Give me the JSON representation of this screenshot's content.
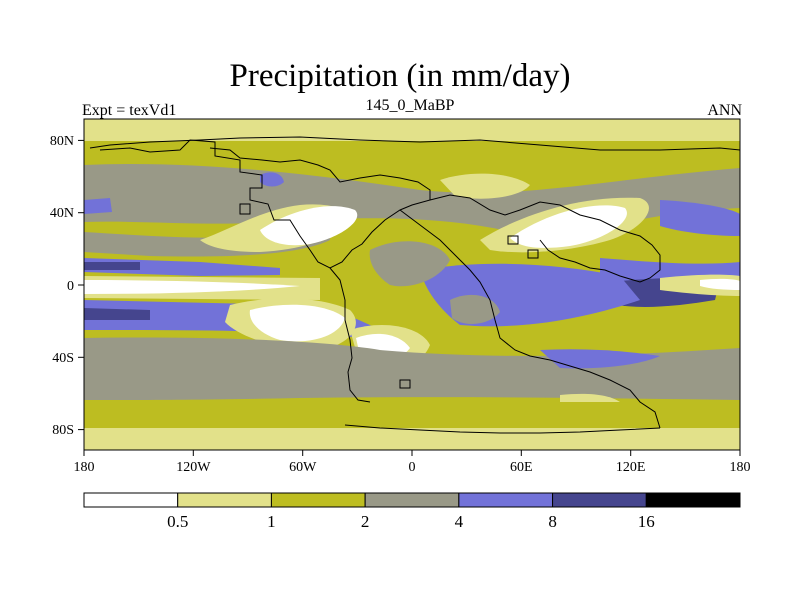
{
  "header": {
    "title": "Precipitation (in mm/day)",
    "experiment": "Expt = texVd1",
    "period": "145_0_MaBP",
    "season": "ANN"
  },
  "map": {
    "x_tick_labels": [
      "180",
      "120W",
      "60W",
      "0",
      "60E",
      "120E",
      "180"
    ],
    "y_tick_labels": [
      "80N",
      "40N",
      "0",
      "40S",
      "80S"
    ],
    "longitude_range": [
      -180,
      180
    ],
    "latitude_range": [
      -90,
      90
    ]
  },
  "colorbar": {
    "bins": [
      {
        "color": "#ffffff"
      },
      {
        "color": "#e2e18a"
      },
      {
        "color": "#bdbd21"
      },
      {
        "color": "#999987"
      },
      {
        "color": "#7272d8"
      },
      {
        "color": "#45458e"
      },
      {
        "color": "#000000"
      }
    ],
    "thresholds": [
      "0.5",
      "1",
      "2",
      "4",
      "8",
      "16"
    ]
  },
  "colors": {
    "very_dry": "#ffffff",
    "dry": "#e2e18a",
    "moderate": "#bdbd21",
    "wet": "#999987",
    "very_wet": "#7272d8",
    "extreme": "#45458e",
    "max": "#000000",
    "coastline": "#000000"
  }
}
